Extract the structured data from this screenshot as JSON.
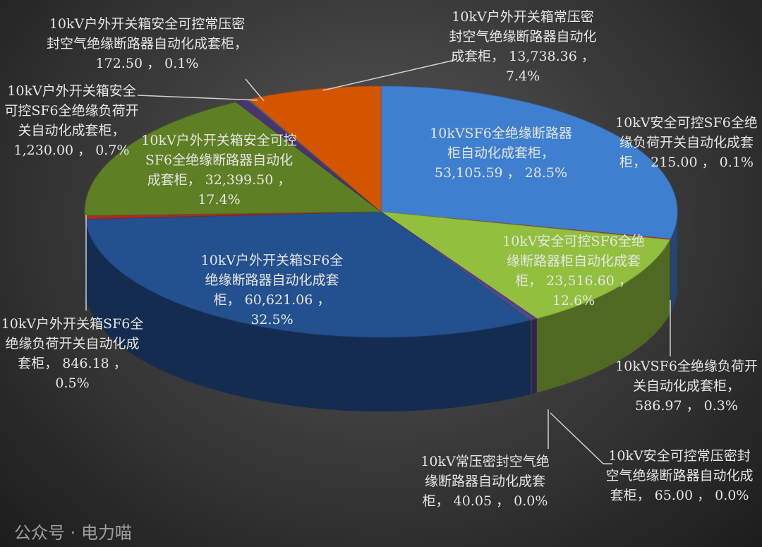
{
  "chart_data": {
    "type": "pie",
    "three_d": true,
    "start_angle_deg": 0,
    "direction": "clockwise",
    "slices": [
      {
        "name": "10kVSF6全绝缘断路器柜自动化成套柜",
        "value": "53,105.59",
        "percent": "28.5%",
        "v": 53105.59,
        "color": "#3f7fcf"
      },
      {
        "name": "10kV安全可控SF6全绝缘负荷开关自动化成套柜",
        "value": "215.00",
        "percent": "0.1%",
        "v": 215.0,
        "color": "#c0392b"
      },
      {
        "name": "10kV安全可控SF6全绝缘断路器柜自动化成套柜",
        "value": "23,516.60",
        "percent": "12.6%",
        "v": 23516.6,
        "color": "#92bf3e"
      },
      {
        "name": "10kVSF6全绝缘负荷开关自动化成套柜",
        "value": "586.97",
        "percent": "0.3%",
        "v": 586.97,
        "color": "#5e3f8e"
      },
      {
        "name": "10kV安全可控常压密封空气绝缘断路器自动化成套柜",
        "value": "65.00",
        "percent": "0.0%",
        "v": 65.0,
        "color": "#2c8ea6"
      },
      {
        "name": "10kV常压密封空气绝缘断路器自动化成套柜",
        "value": "40.05",
        "percent": "0.0%",
        "v": 40.05,
        "color": "#d8792a"
      },
      {
        "name": "10kV户外开关箱SF6全绝缘断路器自动化成套柜",
        "value": "60,621.06",
        "percent": "32.5%",
        "v": 60621.06,
        "color": "#23508f"
      },
      {
        "name": "10kV户外开关箱SF6全绝缘负荷开关自动化成套柜",
        "value": "846.18",
        "percent": "0.5%",
        "v": 846.18,
        "color": "#a82c22"
      },
      {
        "name": "10kV户外开关箱安全可控SF6全绝缘断路器自动化成套柜",
        "value": "32,399.50",
        "percent": "17.4%",
        "v": 32399.5,
        "color": "#5e7f23"
      },
      {
        "name": "10kV户外开关箱安全可控SF6全绝缘负荷开关自动化成套柜",
        "value": "1,230.00",
        "percent": "0.7%",
        "v": 1230.0,
        "color": "#4a3470"
      },
      {
        "name": "10kV户外开关箱安全可控常压密封空气绝缘断路器自动化成套柜",
        "value": "172.50",
        "percent": "0.1%",
        "v": 172.5,
        "color": "#227a90"
      },
      {
        "name": "10kV户外开关箱常压密封空气绝缘断路器自动化成套柜",
        "value": "13,738.36",
        "percent": "7.4%",
        "v": 13738.36,
        "color": "#d45500"
      }
    ]
  },
  "watermark": "公众号 · 电力喵"
}
